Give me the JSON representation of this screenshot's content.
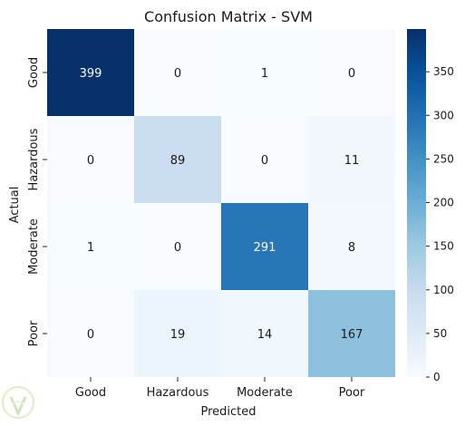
{
  "chart_data": {
    "type": "heatmap",
    "title": "Confusion Matrix - SVM",
    "xlabel": "Predicted",
    "ylabel": "Actual",
    "x_categories": [
      "Good",
      "Hazardous",
      "Moderate",
      "Poor"
    ],
    "y_categories": [
      "Good",
      "Hazardous",
      "Moderate",
      "Poor"
    ],
    "values": [
      [
        399,
        0,
        1,
        0
      ],
      [
        0,
        89,
        0,
        11
      ],
      [
        1,
        0,
        291,
        8
      ],
      [
        0,
        19,
        14,
        167
      ]
    ],
    "value_range": [
      0,
      399
    ],
    "colormap": "Blues",
    "colorbar": {
      "ticks": [
        0,
        50,
        100,
        150,
        200,
        250,
        300,
        350
      ]
    }
  }
}
